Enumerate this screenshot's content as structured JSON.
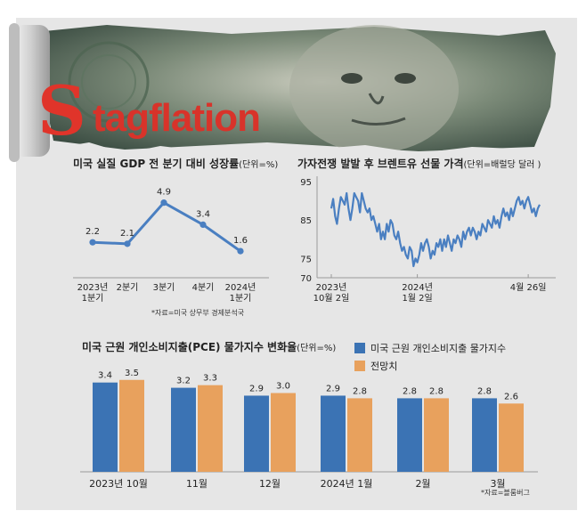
{
  "headline": {
    "first_letter": "S",
    "rest": "tagflation"
  },
  "colors": {
    "blue": "#3b73b4",
    "orange": "#e8a15d",
    "line": "#4a7fc1",
    "red": "#e0342a",
    "panel": "#e6e6e6"
  },
  "chart_data": [
    {
      "type": "line",
      "title": "미국 실질 GDP 전 분기 대비 성장률",
      "unit_note": "(단위=%)",
      "categories": [
        "2023년\n1분기",
        "2분기",
        "3분기",
        "4분기",
        "2024년\n1분기"
      ],
      "values": [
        2.2,
        2.1,
        4.9,
        3.4,
        1.6
      ],
      "value_labels": [
        "2.2",
        "2.1",
        "4.9",
        "3.4",
        "1.6"
      ],
      "source": "*자료=미국 상무부 경제분석국"
    },
    {
      "type": "line",
      "title": "가자전쟁 발발 후 브렌트유 선물 가격",
      "unit_note": "(단위=배럴당 달러 )",
      "yticks": [
        95,
        85,
        75,
        70
      ],
      "ylim": [
        70,
        95
      ],
      "x_labels": [
        {
          "text": "2023년\n10월 2일",
          "index": 0
        },
        {
          "text": "2024년\n1월 2일",
          "index": 45
        },
        {
          "text": "4월 26일",
          "index": 103
        }
      ],
      "values": [
        88,
        90.5,
        86,
        84,
        88,
        91,
        90,
        89,
        92,
        88,
        85,
        88,
        92,
        91,
        90,
        87,
        92,
        90,
        88,
        87,
        88,
        85,
        86,
        84,
        82,
        84,
        80,
        82,
        80,
        84,
        82,
        85,
        84,
        81,
        80,
        82,
        79,
        77,
        78,
        76,
        75,
        78,
        77,
        73,
        75,
        74,
        76,
        79,
        77,
        79,
        80,
        78,
        75,
        77,
        76,
        79,
        78,
        80,
        77,
        80,
        78,
        81,
        79,
        77,
        80,
        79,
        81,
        80,
        78,
        82,
        80,
        82,
        83,
        81,
        83,
        82,
        80,
        82,
        81,
        84,
        83,
        82,
        85,
        84,
        83,
        86,
        84,
        85,
        83,
        86,
        88,
        86,
        87,
        85,
        88,
        86,
        88,
        90,
        91,
        89,
        90,
        88,
        90,
        91,
        89,
        87,
        88,
        86,
        88,
        89
      ],
      "grid": false
    },
    {
      "type": "bar",
      "title": "미국 근원 개인소비지출(PCE) 물가지수 변화율",
      "unit_note": "(단위=%)",
      "categories": [
        "2023년 10월",
        "11월",
        "12월",
        "2024년 1월",
        "2월",
        "3월"
      ],
      "series": [
        {
          "name": "미국 근원 개인소비지출 물가지수",
          "values": [
            3.4,
            3.2,
            2.9,
            2.9,
            2.8,
            2.8
          ],
          "labels": [
            "3.4",
            "3.2",
            "2.9",
            "2.9",
            "2.8",
            "2.8"
          ]
        },
        {
          "name": "전망치",
          "values": [
            3.5,
            3.3,
            3.0,
            2.8,
            2.8,
            2.6
          ],
          "labels": [
            "3.5",
            "3.3",
            "3.0",
            "2.8",
            "2.8",
            "2.6"
          ]
        }
      ],
      "source": "*자료=블룸버그"
    }
  ]
}
